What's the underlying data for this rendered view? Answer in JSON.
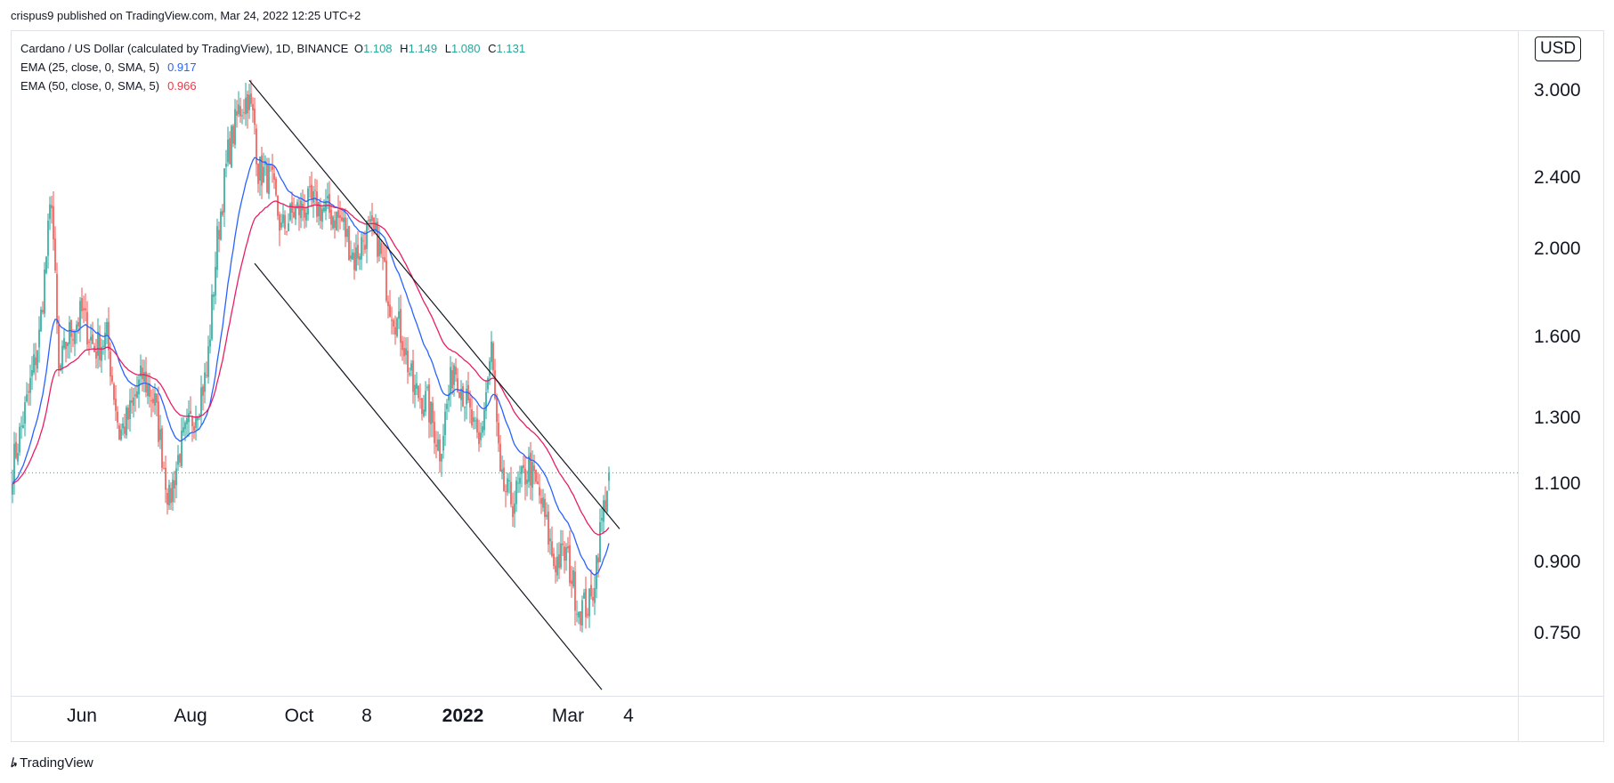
{
  "publisher_line": "crispus9 published on TradingView.com, Mar 24, 2022 12:25 UTC+2",
  "legend": {
    "symbol": "Cardano / US Dollar (calculated by TradingView), 1D, BINANCE",
    "o_label": "O",
    "o": "1.108",
    "h_label": "H",
    "h": "1.149",
    "l_label": "L",
    "l": "1.080",
    "c_label": "C",
    "c": "1.131",
    "ema25_label": "EMA (25, close, 0, SMA, 5)",
    "ema25_value": "0.917",
    "ema50_label": "EMA (50, close, 0, SMA, 5)",
    "ema50_value": "0.966"
  },
  "currency_badge": "USD",
  "footer_brand": "TradingView",
  "colors": {
    "up": "#26a69a",
    "down": "#ef5350",
    "ema25": "#2962ff",
    "ema50": "#e91e63",
    "lastprice": "#26a69a"
  },
  "chart_data": {
    "type": "candlestick",
    "title": "Cardano / US Dollar (calculated by TradingView), 1D, BINANCE",
    "y_scale": "log",
    "ylim": [
      0.64,
      3.5
    ],
    "y_ticks": [
      {
        "v": 3.0,
        "label": "3.000"
      },
      {
        "v": 2.4,
        "label": "2.400"
      },
      {
        "v": 2.0,
        "label": "2.000"
      },
      {
        "v": 1.6,
        "label": "1.600"
      },
      {
        "v": 1.3,
        "label": "1.300"
      },
      {
        "v": 1.1,
        "label": "1.100"
      },
      {
        "v": 0.9,
        "label": "0.900"
      },
      {
        "v": 0.75,
        "label": "0.750"
      }
    ],
    "x_ticks": [
      {
        "label": "Jun",
        "date": "2021-06-01",
        "bold": false
      },
      {
        "label": "Aug",
        "date": "2021-08-01",
        "bold": false
      },
      {
        "label": "Oct",
        "date": "2021-10-01",
        "bold": false
      },
      {
        "label": "8",
        "date": "2021-11-08",
        "bold": false
      },
      {
        "label": "2022",
        "date": "2022-01-01",
        "bold": true
      },
      {
        "label": "Mar",
        "date": "2022-03-01",
        "bold": false
      },
      {
        "label": "4",
        "date": "2022-04-04",
        "bold": false
      }
    ],
    "last_price": 1.131,
    "ema25_last": 0.917,
    "ema50_last": 0.966,
    "close_anchors": [
      [
        "2021-04-23",
        1.15
      ],
      [
        "2021-05-01",
        1.35
      ],
      [
        "2021-05-08",
        1.6
      ],
      [
        "2021-05-15",
        2.3
      ],
      [
        "2021-05-19",
        1.45
      ],
      [
        "2021-05-24",
        1.6
      ],
      [
        "2021-06-01",
        1.7
      ],
      [
        "2021-06-08",
        1.55
      ],
      [
        "2021-06-15",
        1.6
      ],
      [
        "2021-06-22",
        1.25
      ],
      [
        "2021-06-27",
        1.3
      ],
      [
        "2021-07-05",
        1.45
      ],
      [
        "2021-07-12",
        1.35
      ],
      [
        "2021-07-20",
        1.05
      ],
      [
        "2021-07-26",
        1.2
      ],
      [
        "2021-08-02",
        1.3
      ],
      [
        "2021-08-10",
        1.45
      ],
      [
        "2021-08-16",
        2.05
      ],
      [
        "2021-08-22",
        2.55
      ],
      [
        "2021-08-28",
        2.85
      ],
      [
        "2021-09-02",
        2.95
      ],
      [
        "2021-09-06",
        2.75
      ],
      [
        "2021-09-08",
        2.45
      ],
      [
        "2021-09-15",
        2.4
      ],
      [
        "2021-09-21",
        2.1
      ],
      [
        "2021-09-28",
        2.2
      ],
      [
        "2021-10-08",
        2.25
      ],
      [
        "2021-10-18",
        2.2
      ],
      [
        "2021-10-25",
        2.15
      ],
      [
        "2021-11-01",
        1.95
      ],
      [
        "2021-11-08",
        2.1
      ],
      [
        "2021-11-14",
        2.05
      ],
      [
        "2021-11-21",
        1.75
      ],
      [
        "2021-11-28",
        1.6
      ],
      [
        "2021-12-04",
        1.4
      ],
      [
        "2021-12-12",
        1.35
      ],
      [
        "2021-12-19",
        1.2
      ],
      [
        "2021-12-27",
        1.5
      ],
      [
        "2022-01-03",
        1.35
      ],
      [
        "2022-01-10",
        1.2
      ],
      [
        "2022-01-17",
        1.55
      ],
      [
        "2022-01-22",
        1.1
      ],
      [
        "2022-01-29",
        1.05
      ],
      [
        "2022-02-07",
        1.15
      ],
      [
        "2022-02-14",
        1.05
      ],
      [
        "2022-02-21",
        0.9
      ],
      [
        "2022-02-28",
        0.92
      ],
      [
        "2022-03-07",
        0.8
      ],
      [
        "2022-03-14",
        0.81
      ],
      [
        "2022-03-18",
        0.94
      ],
      [
        "2022-03-24",
        1.131
      ]
    ],
    "trendlines": [
      {
        "from": [
          "2021-09-03",
          3.08
        ],
        "to": [
          "2022-03-30",
          0.98
        ]
      },
      {
        "from": [
          "2021-09-06",
          1.93
        ],
        "to": [
          "2022-03-20",
          0.65
        ]
      }
    ]
  }
}
